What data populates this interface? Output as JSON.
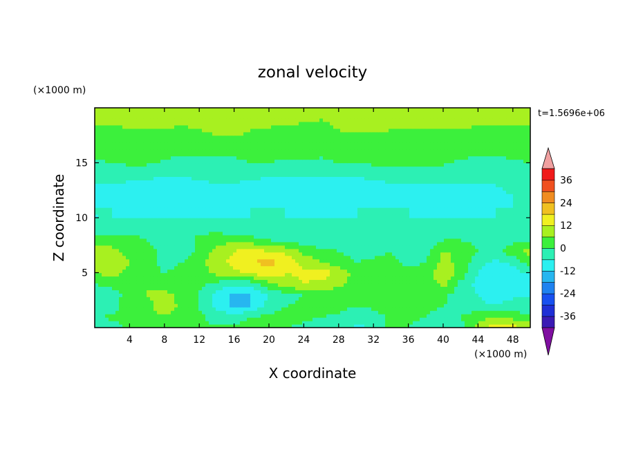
{
  "chart_data": {
    "type": "heatmap",
    "title": "zonal velocity",
    "xlabel": "X coordinate",
    "ylabel": "Z coordinate",
    "x_unit": "(×1000 m)",
    "y_unit": "(×1000 m)",
    "time_label": "t=1.5696e+06",
    "xlim": [
      0,
      50
    ],
    "ylim": [
      0,
      20
    ],
    "x_ticks": [
      4,
      8,
      12,
      16,
      20,
      24,
      28,
      32,
      36,
      40,
      44,
      48
    ],
    "y_ticks": [
      5,
      10,
      15
    ],
    "colorbar": {
      "levels": [
        -42,
        -36,
        -30,
        -24,
        -18,
        -12,
        -6,
        0,
        6,
        12,
        18,
        24,
        30,
        36,
        42
      ],
      "tick_labels": [
        "36",
        "24",
        "12",
        "0",
        "-12",
        "-24",
        "-36"
      ],
      "colors": [
        "#7f0fa0",
        "#3a1ab4",
        "#1f2fd6",
        "#1850f0",
        "#1f82f0",
        "#27b6f0",
        "#2cf0f0",
        "#2cf0b4",
        "#3cf03c",
        "#a8f020",
        "#f0f020",
        "#f0c020",
        "#f08c20",
        "#f05020",
        "#f01a1a",
        "#f0a0a0"
      ],
      "extend": "both"
    },
    "x": [
      0,
      2,
      4,
      6,
      8,
      10,
      12,
      14,
      16,
      18,
      20,
      22,
      24,
      26,
      28,
      30,
      32,
      34,
      36,
      38,
      40,
      42,
      44,
      46,
      48,
      50
    ],
    "z": [
      0,
      1,
      2,
      3,
      4,
      5,
      6,
      7,
      8,
      9,
      10,
      11,
      12,
      13,
      14,
      15,
      16,
      17,
      18,
      19,
      20
    ],
    "values": [
      [
        -4,
        -4,
        2,
        3,
        4,
        2,
        0,
        1,
        2,
        2,
        1,
        0,
        -1,
        -2,
        0,
        -8,
        -5,
        2,
        0,
        -5,
        -6,
        -2,
        8,
        16,
        14,
        10
      ],
      [
        -2,
        2,
        3,
        4,
        5,
        3,
        1,
        -2,
        -3,
        0,
        2,
        2,
        1,
        0,
        -1,
        -3,
        -2,
        1,
        2,
        0,
        -2,
        0,
        4,
        6,
        4,
        2
      ],
      [
        -6,
        -5,
        6,
        4,
        10,
        4,
        0,
        -8,
        -13,
        -12,
        -4,
        0,
        1,
        2,
        2,
        0,
        1,
        2,
        3,
        1,
        0,
        -2,
        -5,
        -6,
        -4,
        -6
      ],
      [
        -5,
        -4,
        4,
        6,
        7,
        5,
        0,
        -8,
        -14,
        -12,
        -6,
        -2,
        0,
        2,
        2,
        0,
        2,
        3,
        2,
        0,
        1,
        -2,
        -6,
        -8,
        -7,
        -6
      ],
      [
        0,
        2,
        6,
        6,
        4,
        3,
        1,
        -2,
        -5,
        -4,
        4,
        10,
        12,
        10,
        8,
        2,
        3,
        4,
        4,
        2,
        8,
        -2,
        -8,
        -12,
        -9,
        -8
      ],
      [
        6,
        8,
        4,
        2,
        0,
        2,
        2,
        8,
        10,
        14,
        16,
        12,
        13,
        16,
        10,
        4,
        5,
        4,
        2,
        3,
        10,
        4,
        -6,
        -10,
        -8,
        -6
      ],
      [
        8,
        10,
        6,
        2,
        -2,
        0,
        4,
        10,
        14,
        18,
        20,
        16,
        10,
        6,
        2,
        0,
        1,
        2,
        -2,
        0,
        8,
        4,
        -4,
        -7,
        -5,
        4
      ],
      [
        10,
        8,
        4,
        2,
        -2,
        -4,
        2,
        8,
        12,
        14,
        12,
        10,
        4,
        2,
        0,
        -2,
        -2,
        0,
        -6,
        -3,
        6,
        6,
        0,
        -2,
        4,
        8
      ],
      [
        4,
        2,
        2,
        0,
        -2,
        -4,
        2,
        4,
        4,
        2,
        0,
        -2,
        -4,
        -6,
        -4,
        -4,
        -5,
        -2,
        -4,
        -3,
        0,
        0,
        -2,
        -4,
        -2,
        -2
      ],
      [
        -4,
        -4,
        -2,
        -3,
        -4,
        -4,
        -2,
        -2,
        -4,
        -4,
        -4,
        -4,
        -6,
        -6,
        -6,
        -6,
        -5,
        -4,
        -4,
        -4,
        -3,
        -3,
        -3,
        -3,
        -2,
        -3
      ],
      [
        -6,
        -6,
        -6,
        -6,
        -6,
        -6,
        -6,
        -6,
        -6,
        -6,
        -6,
        -6,
        -6,
        -6,
        -6,
        -6,
        -6,
        -6,
        -6,
        -6,
        -6,
        -6,
        -6,
        -6,
        -6,
        -6
      ],
      [
        -6,
        -6,
        -7,
        -7,
        -8,
        -8,
        -8,
        -7,
        -7,
        -6,
        -6,
        -6,
        -7,
        -7,
        -7,
        -6,
        -6,
        -6,
        -6,
        -7,
        -7,
        -7,
        -7,
        -6,
        -6,
        -6
      ],
      [
        -6,
        -7,
        -8,
        -9,
        -10,
        -10,
        -9,
        -8,
        -7,
        -8,
        -9,
        -10,
        -11,
        -12,
        -12,
        -11,
        -10,
        -9,
        -8,
        -8,
        -7,
        -8,
        -8,
        -7,
        -6,
        -6
      ],
      [
        -6,
        -6,
        -7,
        -7,
        -8,
        -8,
        -7,
        -6,
        -6,
        -7,
        -8,
        -8,
        -8,
        -9,
        -9,
        -8,
        -7,
        -6,
        -6,
        -6,
        -6,
        -6,
        -6,
        -6,
        -5,
        -5
      ],
      [
        -4,
        -4,
        -4,
        -5,
        -5,
        -5,
        -5,
        -5,
        -5,
        -5,
        -5,
        -5,
        -5,
        -5,
        -5,
        -5,
        -5,
        -5,
        -5,
        -5,
        -5,
        -5,
        -5,
        -5,
        -4,
        -4
      ],
      [
        -1,
        0,
        1,
        1,
        -1,
        -2,
        -2,
        -1,
        -1,
        0,
        0,
        -1,
        -1,
        -1,
        0,
        0,
        1,
        1,
        1,
        1,
        1,
        -1,
        -2,
        -2,
        -1,
        0
      ],
      [
        2,
        3,
        3,
        3,
        2,
        1,
        1,
        1,
        1,
        2,
        2,
        2,
        2,
        1,
        2,
        2,
        2,
        2,
        2,
        2,
        2,
        2,
        1,
        1,
        2,
        2
      ],
      [
        4,
        4,
        5,
        4,
        3,
        4,
        4,
        5,
        5,
        5,
        4,
        3,
        3,
        2,
        2,
        2,
        3,
        3,
        3,
        3,
        3,
        4,
        4,
        3,
        3,
        3
      ],
      [
        5,
        5,
        6,
        6,
        6,
        5,
        6,
        7,
        7,
        6,
        5,
        4,
        4,
        5,
        6,
        7,
        7,
        6,
        6,
        6,
        6,
        6,
        5,
        5,
        5,
        5
      ],
      [
        7,
        7,
        7,
        6,
        7,
        8,
        7,
        6,
        6,
        8,
        9,
        8,
        7,
        6,
        7,
        8,
        7,
        6,
        7,
        8,
        9,
        8,
        7,
        8,
        7,
        7
      ],
      [
        9,
        8,
        7,
        8,
        9,
        8,
        7,
        8,
        9,
        8,
        7,
        8,
        9,
        8,
        7,
        8,
        9,
        8,
        7,
        8,
        9,
        8,
        7,
        8,
        9,
        8
      ]
    ]
  }
}
